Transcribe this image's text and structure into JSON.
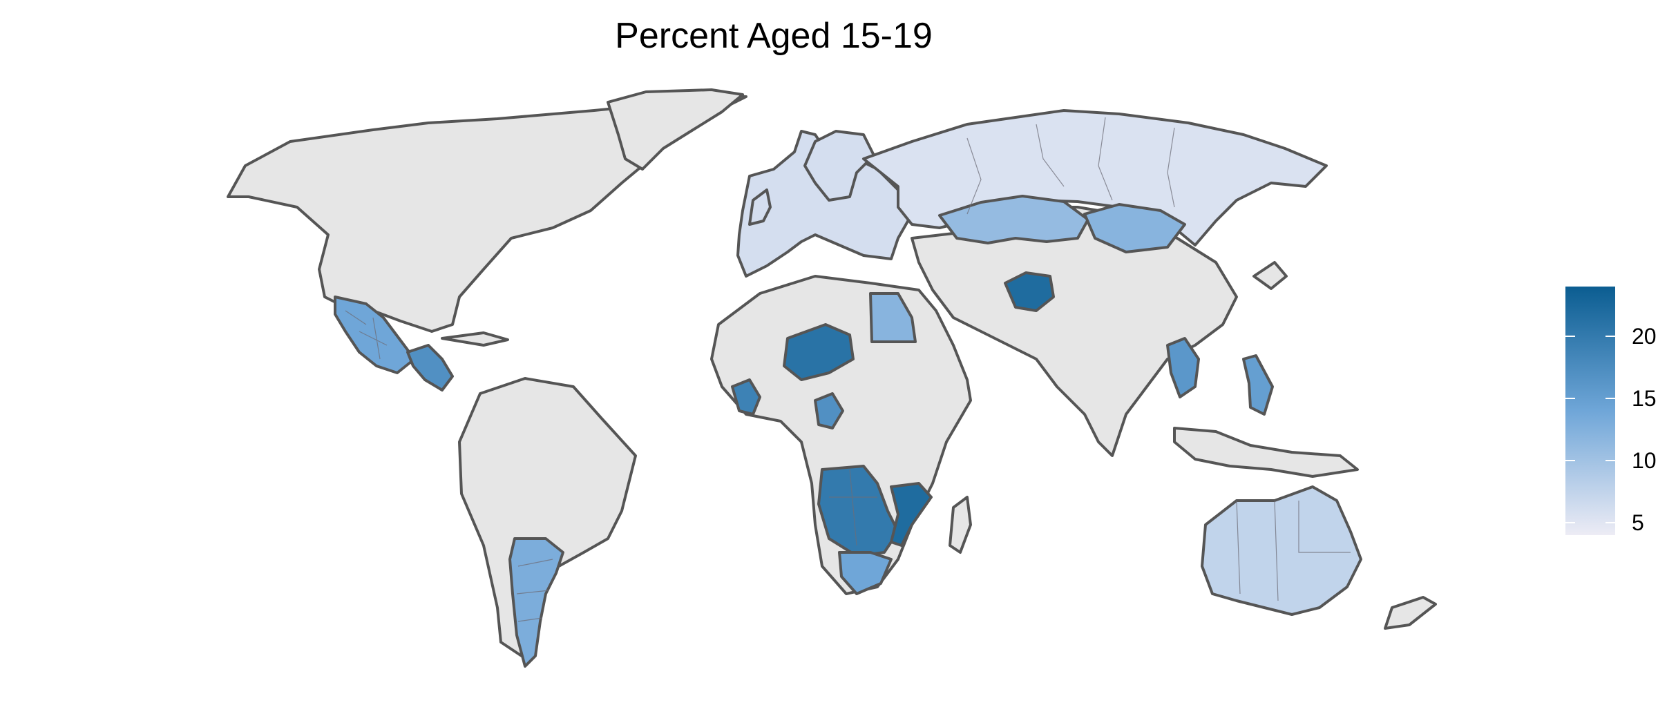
{
  "title": "Percent Aged 15-19",
  "colors": {
    "no_data": "#e6e6e6",
    "border": "#555555",
    "scale_low": "#edecf5",
    "scale_mid": "#6fa6d8",
    "scale_high": "#0b5d91"
  },
  "legend": {
    "min": 4,
    "max": 24,
    "ticks": [
      {
        "value": 5,
        "label": "5"
      },
      {
        "value": 10,
        "label": "10"
      },
      {
        "value": 15,
        "label": "15"
      },
      {
        "value": 20,
        "label": "20"
      }
    ]
  },
  "regions": [
    {
      "name": "russia",
      "value": 5.5
    },
    {
      "name": "kazakhstan",
      "value": 11
    },
    {
      "name": "mongolia",
      "value": 12
    },
    {
      "name": "europe",
      "value": 6
    },
    {
      "name": "mexico",
      "value": 14
    },
    {
      "name": "central-america",
      "value": 17
    },
    {
      "name": "argentina",
      "value": 13
    },
    {
      "name": "egypt",
      "value": 12
    },
    {
      "name": "niger",
      "value": 21
    },
    {
      "name": "west-africa",
      "value": 19
    },
    {
      "name": "cameroon",
      "value": 17
    },
    {
      "name": "afghanistan",
      "value": 22
    },
    {
      "name": "southern-africa",
      "value": 20
    },
    {
      "name": "mozambique",
      "value": 22
    },
    {
      "name": "south-africa",
      "value": 14
    },
    {
      "name": "southeast-asia",
      "value": 16
    },
    {
      "name": "philippines",
      "value": 15
    },
    {
      "name": "australia",
      "value": 7.5
    }
  ]
}
